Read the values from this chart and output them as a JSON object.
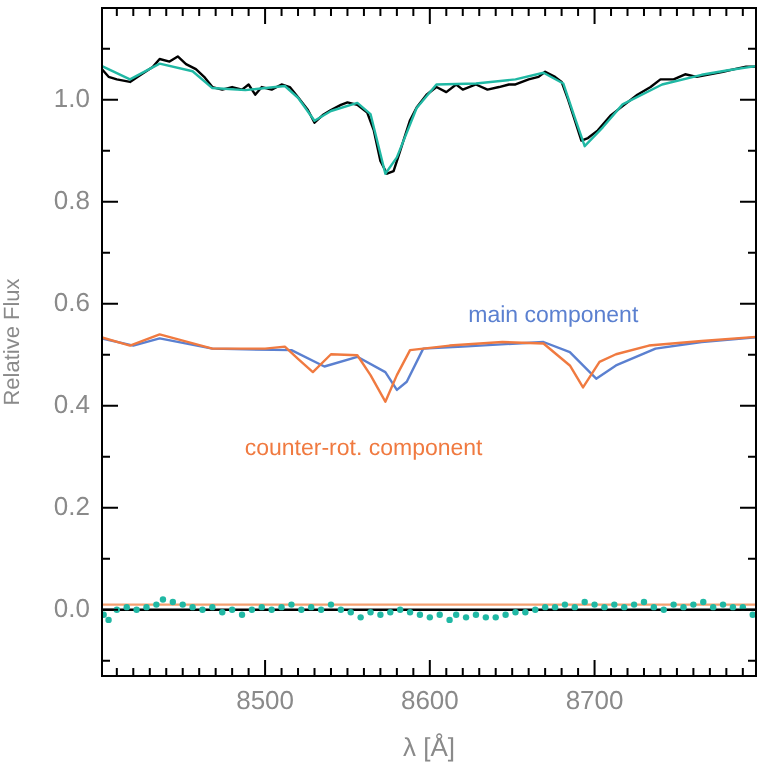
{
  "chart_data": {
    "type": "line",
    "xlabel": "λ [Å]",
    "ylabel": "Relative Flux",
    "xlim": [
      8401,
      8798
    ],
    "ylim": [
      -0.13,
      1.18
    ],
    "xticks": [
      {
        "value": 8410,
        "label": null
      },
      {
        "value": 8420,
        "label": null
      },
      {
        "value": 8430,
        "label": null
      },
      {
        "value": 8440,
        "label": null
      },
      {
        "value": 8450,
        "label": null
      },
      {
        "value": 8460,
        "label": null
      },
      {
        "value": 8470,
        "label": null
      },
      {
        "value": 8480,
        "label": null
      },
      {
        "value": 8490,
        "label": null
      },
      8500,
      {
        "value": 8510,
        "label": null
      },
      {
        "value": 8520,
        "label": null
      },
      {
        "value": 8530,
        "label": null
      },
      {
        "value": 8540,
        "label": null
      },
      {
        "value": 8550,
        "label": null
      },
      {
        "value": 8560,
        "label": null
      },
      {
        "value": 8570,
        "label": null
      },
      {
        "value": 8580,
        "label": null
      },
      {
        "value": 8590,
        "label": null
      },
      8600,
      {
        "value": 8610,
        "label": null
      },
      {
        "value": 8620,
        "label": null
      },
      {
        "value": 8630,
        "label": null
      },
      {
        "value": 8640,
        "label": null
      },
      {
        "value": 8650,
        "label": null
      },
      {
        "value": 8660,
        "label": null
      },
      {
        "value": 8670,
        "label": null
      },
      {
        "value": 8680,
        "label": null
      },
      {
        "value": 8690,
        "label": null
      },
      8700,
      {
        "value": 8710,
        "label": null
      },
      {
        "value": 8720,
        "label": null
      },
      {
        "value": 8730,
        "label": null
      },
      {
        "value": 8740,
        "label": null
      },
      {
        "value": 8750,
        "label": null
      },
      {
        "value": 8760,
        "label": null
      },
      {
        "value": 8770,
        "label": null
      },
      {
        "value": 8780,
        "label": null
      },
      {
        "value": 8790,
        "label": null
      }
    ],
    "yticks": [
      {
        "value": -0.1,
        "label": null
      },
      {
        "value": 0,
        "label": "0.0"
      },
      {
        "value": 0.1,
        "label": null
      },
      {
        "value": 0.2,
        "label": "0.2"
      },
      {
        "value": 0.3,
        "label": null
      },
      {
        "value": 0.4,
        "label": "0.4"
      },
      {
        "value": 0.5,
        "label": null
      },
      {
        "value": 0.6,
        "label": "0.6"
      },
      {
        "value": 0.7,
        "label": null
      },
      {
        "value": 0.8,
        "label": "0.8"
      },
      {
        "value": 0.9,
        "label": null
      },
      {
        "value": 1.0,
        "label": "1.0"
      },
      {
        "value": 1.1,
        "label": null
      }
    ],
    "grid": false,
    "legend": false,
    "series": [
      {
        "color": "#000000",
        "x": [
          8401,
          8405,
          8410,
          8418,
          8425,
          8432,
          8436,
          8442,
          8447,
          8452,
          8458,
          8463,
          8468,
          8474,
          8480,
          8486,
          8490,
          8494,
          8498,
          8504,
          8510,
          8515,
          8520,
          8526,
          8530,
          8535,
          8540,
          8546,
          8550,
          8556,
          8562,
          8566,
          8570,
          8574,
          8578,
          8582,
          8588,
          8592,
          8598,
          8604,
          8610,
          8616,
          8620,
          8628,
          8635,
          8642,
          8648,
          8652,
          8660,
          8666,
          8670,
          8676,
          8680,
          8684,
          8688,
          8692,
          8696,
          8702,
          8710,
          8718,
          8726,
          8734,
          8740,
          8748,
          8755,
          8762,
          8770,
          8778,
          8785,
          8792,
          8798
        ],
        "values": [
          1.06,
          1.045,
          1.04,
          1.035,
          1.05,
          1.065,
          1.08,
          1.075,
          1.085,
          1.07,
          1.06,
          1.045,
          1.025,
          1.02,
          1.025,
          1.02,
          1.03,
          1.01,
          1.025,
          1.02,
          1.03,
          1.025,
          1.005,
          0.98,
          0.955,
          0.97,
          0.98,
          0.99,
          0.995,
          0.99,
          0.975,
          0.94,
          0.88,
          0.855,
          0.86,
          0.9,
          0.96,
          0.985,
          1.01,
          1.025,
          1.015,
          1.03,
          1.02,
          1.03,
          1.02,
          1.025,
          1.03,
          1.03,
          1.04,
          1.045,
          1.055,
          1.045,
          1.035,
          1.0,
          0.96,
          0.92,
          0.925,
          0.94,
          0.97,
          0.99,
          1.01,
          1.025,
          1.04,
          1.04,
          1.05,
          1.045,
          1.05,
          1.055,
          1.06,
          1.065,
          1.065
        ]
      },
      {
        "color": "#20b8a4",
        "x": [
          8401,
          8418,
          8436,
          8456,
          8468,
          8488,
          8512,
          8520,
          8530,
          8540,
          8556,
          8564,
          8573,
          8580,
          8592,
          8604,
          8628,
          8652,
          8669,
          8681,
          8688,
          8694,
          8705,
          8717,
          8741,
          8765,
          8781,
          8798
        ],
        "values": [
          1.066,
          1.04,
          1.071,
          1.056,
          1.023,
          1.019,
          1.027,
          1.004,
          0.959,
          0.978,
          0.994,
          0.972,
          0.855,
          0.887,
          0.984,
          1.03,
          1.032,
          1.04,
          1.053,
          1.032,
          0.965,
          0.909,
          0.946,
          0.991,
          1.03,
          1.049,
          1.058,
          1.066
        ]
      },
      {
        "name": "main component",
        "color": "#5b80d0",
        "x": [
          8401,
          8420,
          8436,
          8468,
          8516,
          8536,
          8556,
          8573,
          8580,
          8586,
          8596,
          8620,
          8669,
          8685,
          8701,
          8713,
          8737,
          8765,
          8798
        ],
        "values": [
          0.532,
          0.518,
          0.532,
          0.512,
          0.509,
          0.477,
          0.496,
          0.466,
          0.431,
          0.447,
          0.512,
          0.516,
          0.525,
          0.505,
          0.453,
          0.479,
          0.512,
          0.525,
          0.534
        ]
      },
      {
        "name": "counter-rot. component",
        "color": "#f07a40",
        "x": [
          8401,
          8418,
          8436,
          8468,
          8500,
          8512,
          8520,
          8529,
          8540,
          8556,
          8564,
          8573,
          8580,
          8588,
          8612,
          8644,
          8669,
          8685,
          8693,
          8703,
          8713,
          8733,
          8765,
          8798
        ],
        "values": [
          0.534,
          0.518,
          0.54,
          0.512,
          0.512,
          0.516,
          0.492,
          0.466,
          0.501,
          0.499,
          0.46,
          0.408,
          0.46,
          0.509,
          0.518,
          0.525,
          0.522,
          0.479,
          0.436,
          0.486,
          0.501,
          0.518,
          0.527,
          0.535
        ]
      },
      {
        "type": "scatter",
        "color": "#20b8a4",
        "x": [
          8402,
          8405,
          8410,
          8416,
          8422,
          8428,
          8434,
          8438,
          8444,
          8450,
          8456,
          8462,
          8468,
          8474,
          8480,
          8486,
          8492,
          8498,
          8504,
          8510,
          8516,
          8522,
          8528,
          8534,
          8540,
          8546,
          8552,
          8558,
          8564,
          8570,
          8576,
          8582,
          8588,
          8594,
          8600,
          8606,
          8612,
          8616,
          8622,
          8628,
          8634,
          8640,
          8646,
          8652,
          8658,
          8664,
          8670,
          8676,
          8682,
          8688,
          8694,
          8700,
          8706,
          8712,
          8718,
          8724,
          8730,
          8736,
          8742,
          8748,
          8754,
          8760,
          8766,
          8772,
          8778,
          8784,
          8790,
          8796
        ],
        "values": [
          -0.01,
          -0.02,
          0.0,
          0.005,
          0.0,
          0.005,
          0.01,
          0.02,
          0.015,
          0.01,
          0.005,
          0.0,
          0.005,
          -0.005,
          0.0,
          -0.01,
          0.0,
          0.005,
          0.0,
          0.005,
          0.01,
          0.0,
          0.005,
          0.0,
          0.01,
          0.0,
          -0.005,
          -0.015,
          -0.005,
          -0.01,
          -0.005,
          0.0,
          -0.005,
          -0.01,
          -0.015,
          -0.01,
          -0.02,
          -0.01,
          -0.015,
          -0.01,
          -0.015,
          -0.015,
          -0.01,
          -0.005,
          -0.005,
          0.0,
          0.005,
          0.005,
          0.01,
          0.005,
          0.015,
          0.01,
          0.005,
          0.01,
          0.005,
          0.01,
          0.015,
          0.005,
          0.0,
          0.01,
          0.005,
          0.01,
          0.015,
          0.005,
          0.01,
          0.005,
          0.005,
          -0.01
        ]
      }
    ],
    "ref_lines": [
      {
        "axis": "y",
        "value": 0.01,
        "color": "#f4a070"
      },
      {
        "axis": "y",
        "value": 0,
        "color": "#000000"
      }
    ]
  }
}
